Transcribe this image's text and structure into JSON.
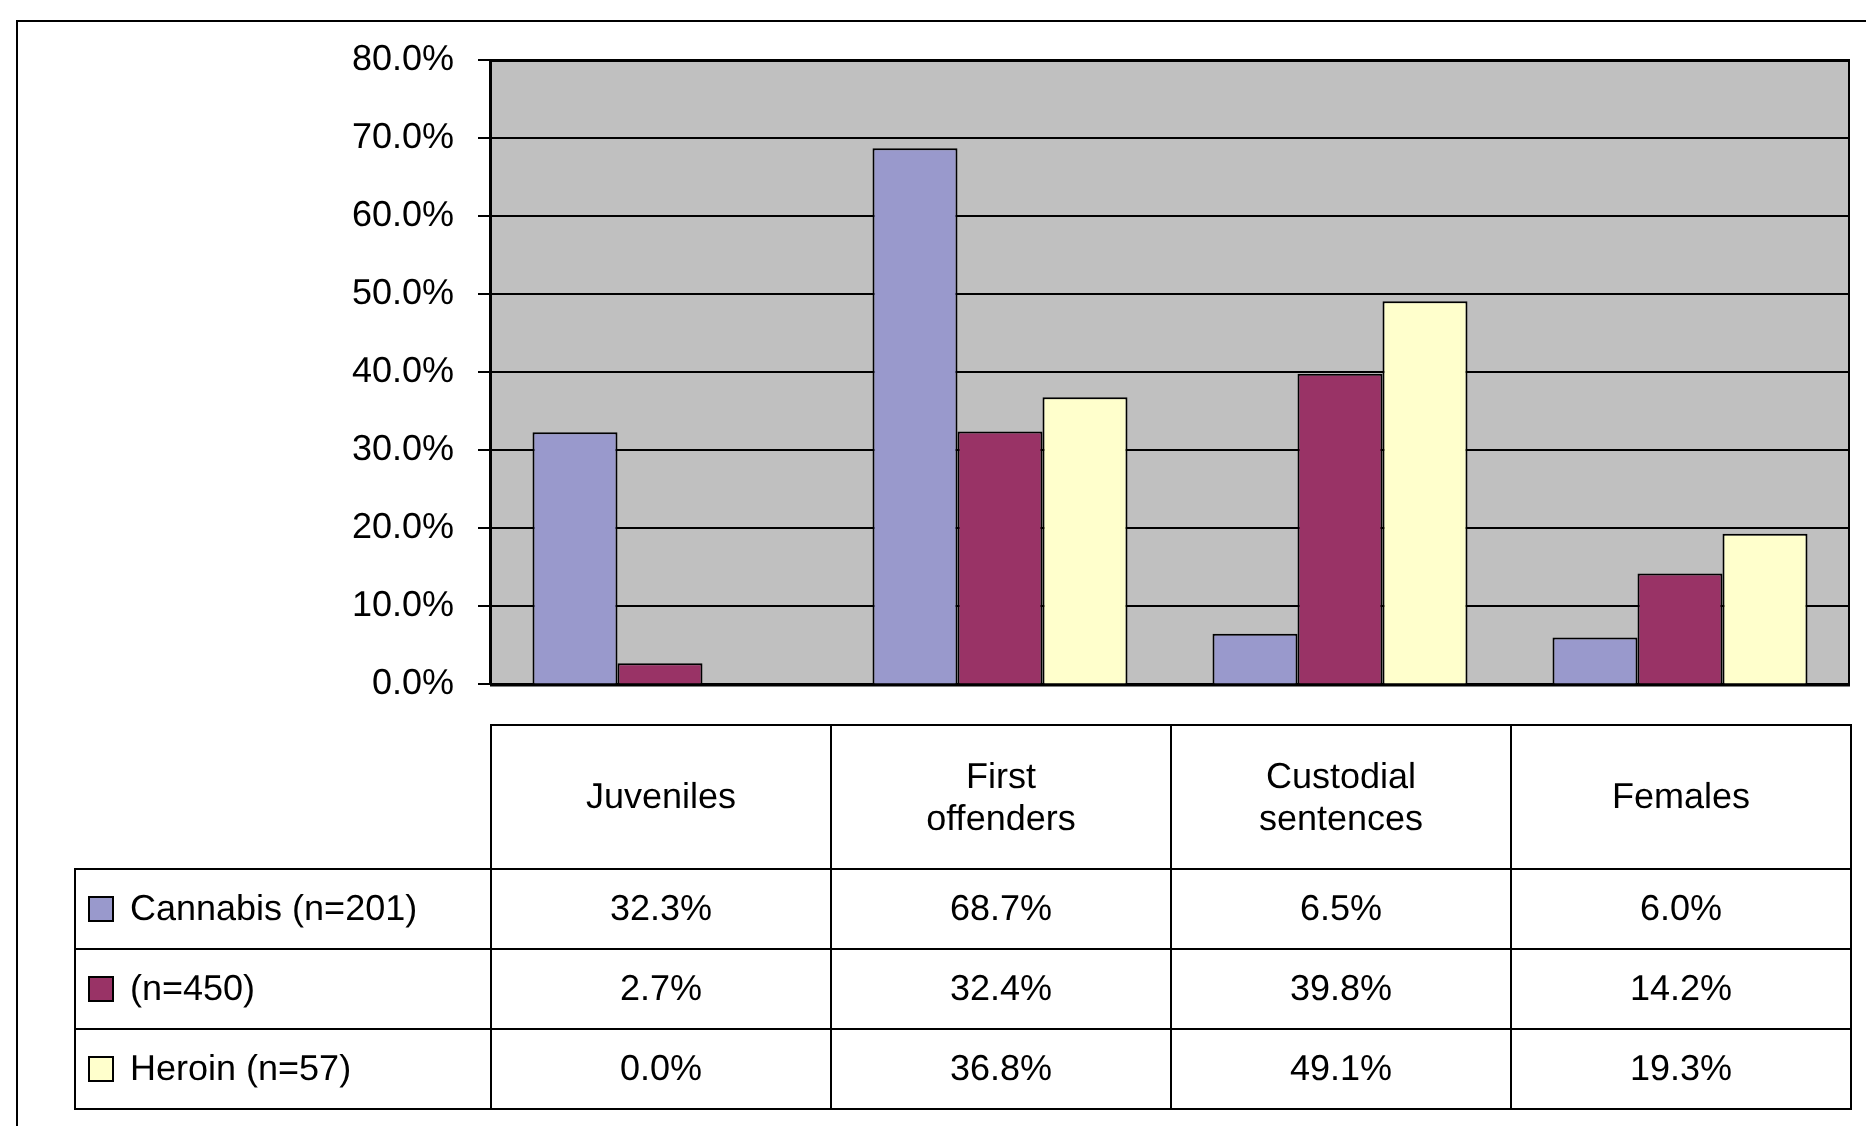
{
  "chart_data": {
    "type": "bar",
    "categories": [
      "Juveniles",
      "First offenders",
      "Custodial sentences",
      "Females"
    ],
    "series": [
      {
        "name": "Cannabis (n=201)",
        "color": "#9999cc",
        "values": [
          32.3,
          68.7,
          6.5,
          6.0
        ],
        "value_labels": [
          "32.3%",
          "68.7%",
          "6.5%",
          "6.0%"
        ]
      },
      {
        "name": "(n=450)",
        "color": "#993366",
        "values": [
          2.7,
          32.4,
          39.8,
          14.2
        ],
        "value_labels": [
          "2.7%",
          "32.4%",
          "39.8%",
          "14.2%"
        ]
      },
      {
        "name": "Heroin (n=57)",
        "color": "#ffffcc",
        "values": [
          0.0,
          36.8,
          49.1,
          19.3
        ],
        "value_labels": [
          "0.0%",
          "36.8%",
          "49.1%",
          "19.3%"
        ]
      }
    ],
    "ylim": [
      0,
      80
    ],
    "yticks": [
      {
        "value": 0,
        "label": "0.0%"
      },
      {
        "value": 10,
        "label": "10.0%"
      },
      {
        "value": 20,
        "label": "20.0%"
      },
      {
        "value": 30,
        "label": "30.0%"
      },
      {
        "value": 40,
        "label": "40.0%"
      },
      {
        "value": 50,
        "label": "50.0%"
      },
      {
        "value": 60,
        "label": "60.0%"
      },
      {
        "value": 70,
        "label": "70.0%"
      },
      {
        "value": 80,
        "label": "80.0%"
      }
    ],
    "grid": "y",
    "legend": "bottom"
  }
}
